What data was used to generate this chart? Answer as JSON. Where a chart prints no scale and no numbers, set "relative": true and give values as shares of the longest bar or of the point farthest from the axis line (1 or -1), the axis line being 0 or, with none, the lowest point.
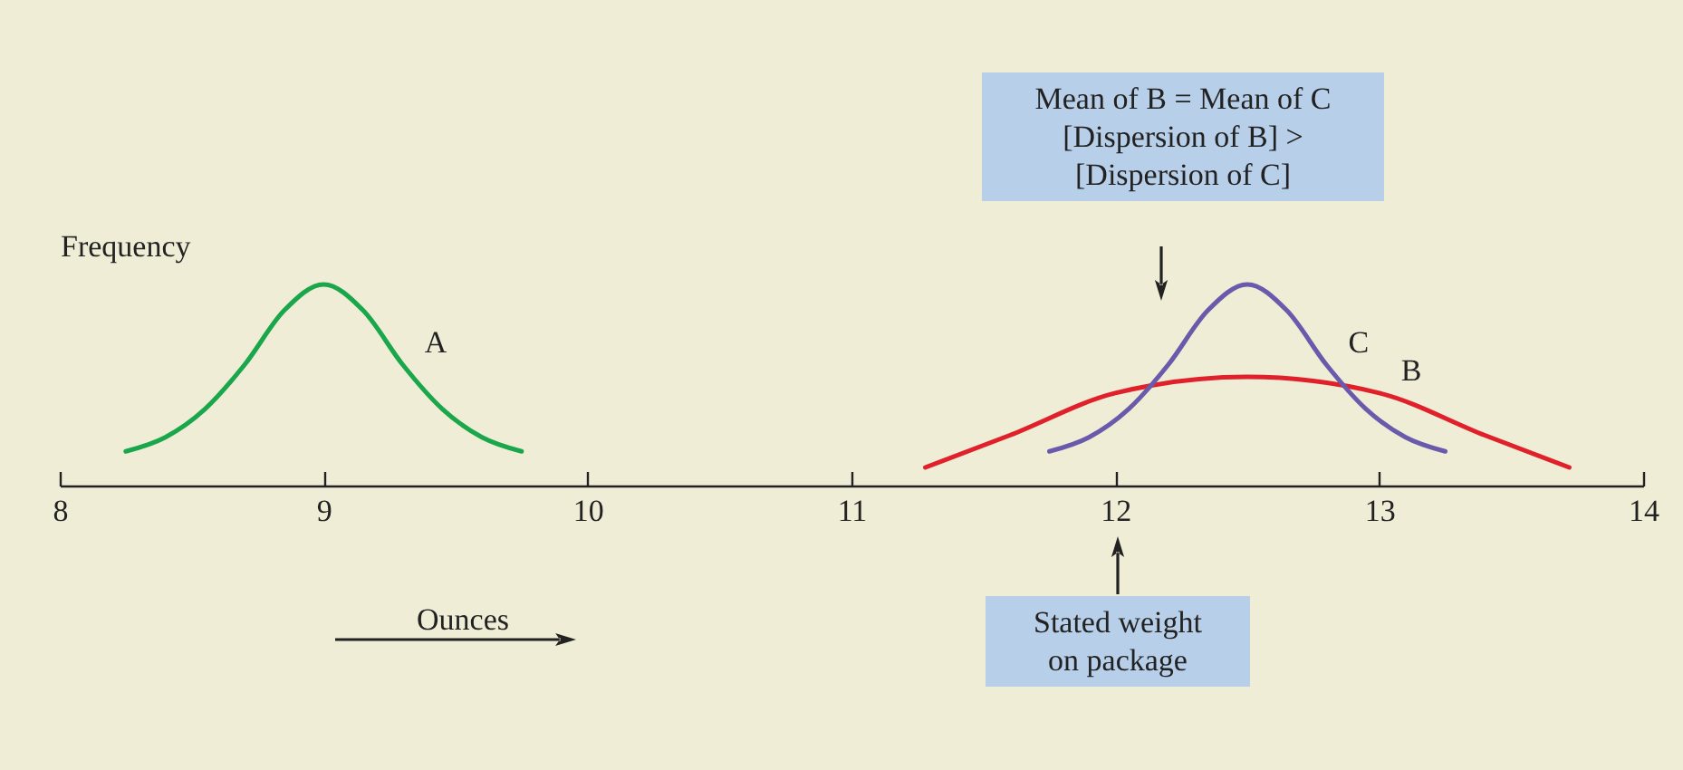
{
  "chart_data": {
    "type": "line",
    "relative": true,
    "ylabel": "Frequency",
    "xlabel": "Ounces",
    "xlim": [
      8,
      14
    ],
    "xticks": [
      8,
      9,
      10,
      11,
      12,
      13,
      14
    ],
    "grid": false,
    "legend": false,
    "marker": "none",
    "line_style": "solid",
    "annotations": [
      "Mean of B = Mean of C",
      "[Dispersion of B] > [Dispersion of C]",
      "Stated weight on package"
    ],
    "series": [
      {
        "name": "A",
        "color": "#1aa64a",
        "x": [
          8.25,
          8.4,
          8.55,
          8.7,
          8.85,
          9.0,
          9.15,
          9.3,
          9.45,
          9.6,
          9.75
        ],
        "values": [
          0.17,
          0.24,
          0.38,
          0.6,
          0.87,
          1,
          0.87,
          0.6,
          0.38,
          0.24,
          0.17
        ]
      },
      {
        "name": "B",
        "color": "#e0202a",
        "x": [
          11.28,
          11.6,
          12.0,
          12.5,
          13.0,
          13.4,
          13.72
        ],
        "values": [
          0.09,
          0.25,
          0.46,
          0.54,
          0.46,
          0.25,
          0.09
        ]
      },
      {
        "name": "C",
        "color": "#6a5aab",
        "x": [
          11.75,
          11.9,
          12.05,
          12.2,
          12.35,
          12.5,
          12.65,
          12.8,
          12.95,
          13.1,
          13.25
        ],
        "values": [
          0.17,
          0.24,
          0.38,
          0.6,
          0.87,
          1,
          0.87,
          0.6,
          0.38,
          0.24,
          0.17
        ]
      }
    ]
  }
}
